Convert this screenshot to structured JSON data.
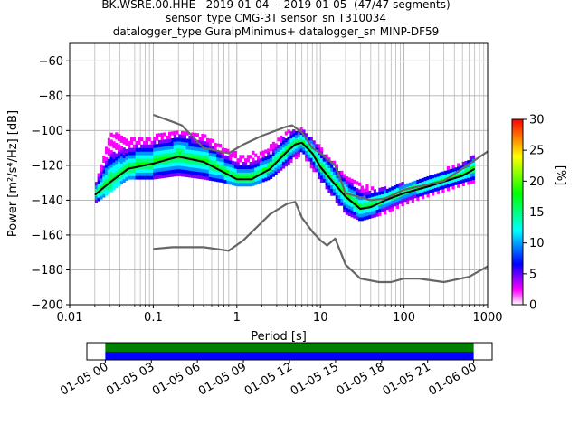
{
  "title_lines": [
    "BK.WSRE.00.HHE   2019-01-04 -- 2019-01-05  (47/47 segments)",
    "sensor_type CMG-3T sensor_sn T310034",
    "datalogger_type GuralpMinimus+ datalogger_sn MINP-DF59"
  ],
  "colors": {
    "mean": "#000000",
    "noise_models": "#666666",
    "grid": "#b0b0b0",
    "coverage_top": "#008000",
    "coverage_bottom": "#0000ff"
  },
  "chart_data": [
    {
      "type": "heatmap",
      "name": "ppsd",
      "xlabel": "Period [s]",
      "ylabel": "Power [m²/s⁴/Hz] [dB]",
      "xscale": "log",
      "xlim": [
        0.01,
        1000
      ],
      "ylim": [
        -200,
        -50
      ],
      "x_ticks": [
        0.01,
        0.1,
        1,
        10,
        100,
        1000
      ],
      "x_tick_labels": [
        "0.01",
        "0.1",
        "1",
        "10",
        "100",
        "1000"
      ],
      "y_ticks": [
        -200,
        -180,
        -160,
        -140,
        -120,
        -100,
        -80,
        -60
      ],
      "y_tick_labels": [
        "−200",
        "−180",
        "−160",
        "−140",
        "−120",
        "−100",
        "−80",
        "−60"
      ],
      "grid": true,
      "colorbar": {
        "label": "[%]",
        "range": [
          0,
          30
        ],
        "ticks": [
          0,
          5,
          10,
          15,
          20,
          25,
          30
        ],
        "tick_labels": [
          "0",
          "5",
          "10",
          "15",
          "20",
          "25",
          "30"
        ],
        "colormap": [
          "#ffffff",
          "#ff00ff",
          "#0000ff",
          "#00ffff",
          "#00ff00",
          "#ffff00",
          "#ff0000"
        ]
      },
      "series": [
        {
          "role": "mean",
          "x": [
            0.02,
            0.03,
            0.05,
            0.1,
            0.2,
            0.4,
            0.7,
            1.0,
            1.5,
            2.5,
            4,
            5,
            6,
            8,
            10,
            15,
            20,
            30,
            40,
            60,
            100,
            200,
            500,
            700
          ],
          "y": [
            -137,
            -130,
            -122,
            -119,
            -115,
            -118,
            -124,
            -128,
            -128,
            -122,
            -112,
            -108,
            -107,
            -113,
            -121,
            -131,
            -138,
            -145,
            -144,
            -140,
            -136,
            -132,
            -126,
            -122
          ]
        },
        {
          "role": "new-high-noise-model",
          "x": [
            0.1,
            0.17,
            0.22,
            0.4,
            0.8,
            1.2,
            2,
            3.8,
            4.6,
            6,
            8,
            10,
            15,
            20,
            40,
            60,
            100,
            300,
            1000
          ],
          "y": [
            -91,
            -95,
            -97,
            -110,
            -113,
            -108,
            -103,
            -98,
            -97,
            -101,
            -110,
            -113,
            -120,
            -136,
            -140,
            -139,
            -134,
            -129,
            -112
          ]
        },
        {
          "role": "new-low-noise-model",
          "x": [
            0.1,
            0.17,
            0.4,
            0.8,
            1.2,
            2.5,
            4,
            5,
            6,
            8,
            10,
            12,
            15,
            20,
            30,
            50,
            70,
            100,
            150,
            300,
            600,
            1000
          ],
          "y": [
            -168,
            -167,
            -167,
            -169,
            -163,
            -148,
            -142,
            -141,
            -150,
            -158,
            -163,
            -166,
            -162,
            -177,
            -185,
            -187,
            -187,
            -185,
            -185,
            -187,
            -184,
            -178
          ]
        }
      ],
      "density_band": [
        {
          "x": 0.02,
          "low": -142,
          "high": -132
        },
        {
          "x": 0.03,
          "low": -136,
          "high": -102
        },
        {
          "x": 0.05,
          "low": -128,
          "high": -104
        },
        {
          "x": 0.1,
          "low": -128,
          "high": -104
        },
        {
          "x": 0.2,
          "low": -126,
          "high": -100
        },
        {
          "x": 0.4,
          "low": -128,
          "high": -103
        },
        {
          "x": 0.7,
          "low": -130,
          "high": -110
        },
        {
          "x": 1,
          "low": -132,
          "high": -114
        },
        {
          "x": 1.5,
          "low": -132,
          "high": -114
        },
        {
          "x": 2.5,
          "low": -128,
          "high": -110
        },
        {
          "x": 4,
          "low": -120,
          "high": -101
        },
        {
          "x": 6,
          "low": -114,
          "high": -100
        },
        {
          "x": 10,
          "low": -129,
          "high": -110
        },
        {
          "x": 20,
          "low": -148,
          "high": -126
        },
        {
          "x": 30,
          "low": -152,
          "high": -132
        },
        {
          "x": 60,
          "low": -148,
          "high": -134
        },
        {
          "x": 100,
          "low": -143,
          "high": -131
        },
        {
          "x": 200,
          "low": -138,
          "high": -127
        },
        {
          "x": 500,
          "low": -132,
          "high": -119
        },
        {
          "x": 700,
          "low": -130,
          "high": -114
        }
      ]
    },
    {
      "type": "bar",
      "name": "coverage",
      "x_tick_labels": [
        "01-05 00",
        "01-05 03",
        "01-05 06",
        "01-05 09",
        "01-05 12",
        "01-05 15",
        "01-05 18",
        "01-05 21",
        "01-06 00"
      ],
      "x_tick_hours": [
        0,
        3,
        6,
        9,
        12,
        15,
        18,
        21,
        24
      ],
      "xlim_hours": [
        -1.2,
        25.2
      ],
      "coverage_hours": [
        0,
        24
      ],
      "segments": 47
    }
  ]
}
